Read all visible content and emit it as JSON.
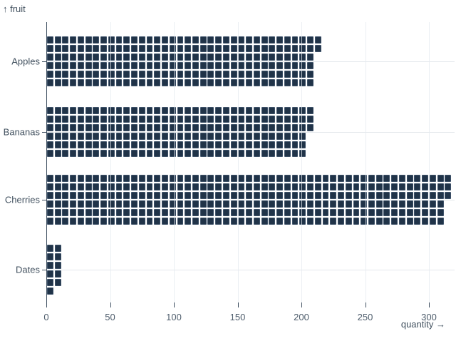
{
  "chart_data": {
    "type": "bar",
    "subtype": "waffle",
    "orientation": "horizontal",
    "title": "",
    "categories": [
      "Apples",
      "Bananas",
      "Cherries",
      "Dates"
    ],
    "values": [
      212,
      207,
      315,
      11
    ],
    "series": [
      {
        "name": "quantity",
        "values": [
          212,
          207,
          315,
          11
        ]
      }
    ],
    "unit_per_cell": 1,
    "cells_per_column": 6,
    "x_ticks": [
      0,
      50,
      100,
      150,
      200,
      250,
      300
    ],
    "xlim": [
      0,
      320
    ],
    "grid": "on",
    "legend": "none",
    "xlabel": "quantity",
    "ylabel": "fruit",
    "xlabel_display": "quantity →",
    "ylabel_display": "↑ fruit",
    "colors": {
      "cell_fill": "#203348",
      "cell_border": "#3e5269",
      "axis_line": "#3f4f60",
      "tick_text": "#4d5c6b",
      "category_text": "#42515f",
      "gridline": "#e4e8ec",
      "gridline_overlay": "rgba(229,234,239,0.78)",
      "background": "#ffffff"
    }
  }
}
